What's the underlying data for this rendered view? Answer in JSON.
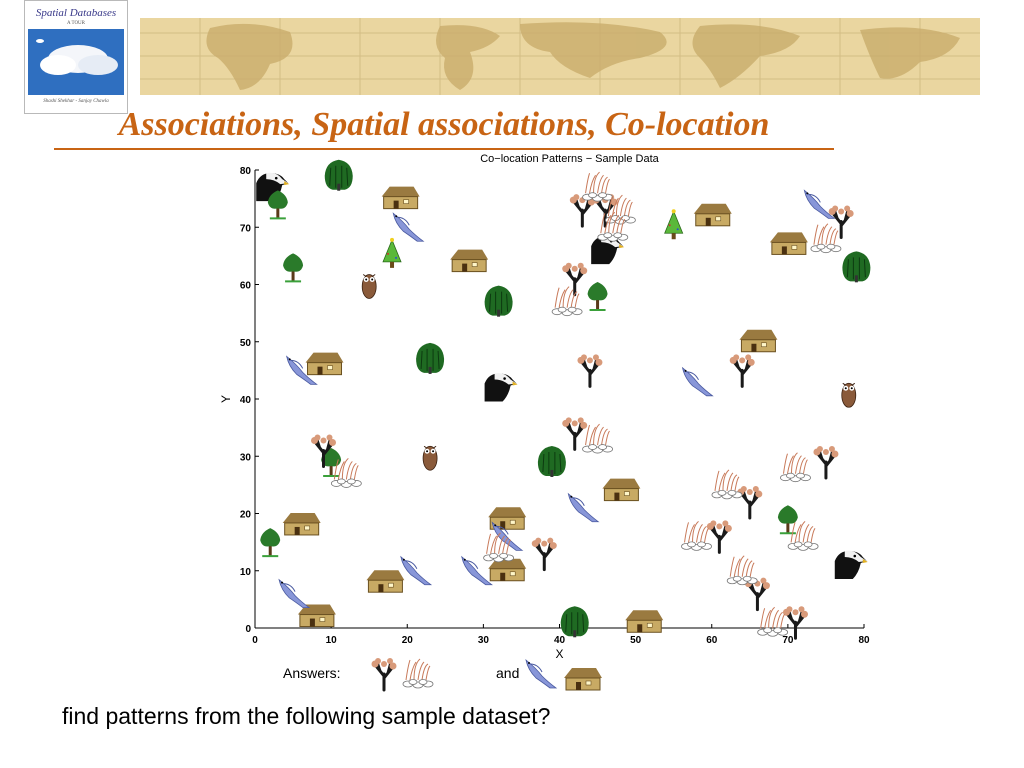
{
  "slide": {
    "title": "Associations, Spatial associations, Co-location",
    "question": "find patterns from the following sample dataset?"
  },
  "book_cover": {
    "title": "Spatial Databases",
    "subtitle": "A TOUR",
    "authors": "Shashi Shekhar - Sanjay Chawla"
  },
  "answers": {
    "label": "Answers:",
    "pattern_1": [
      "tree-icon",
      "grass-icon"
    ],
    "joiner": "and",
    "pattern_2": [
      "bird-icon",
      "house-icon"
    ]
  },
  "colors": {
    "title": "#c86414",
    "banner": "#ead6a0",
    "bird": "#8896d8",
    "house": "#c8aa64",
    "tree_trunk": "#1a1a1a",
    "tree_leaf": "#d89a7a",
    "green_tree": "#2a7a2a"
  },
  "chart_data": {
    "type": "scatter",
    "title": "Co−location Patterns − Sample Data",
    "xlabel": "X",
    "ylabel": "Y",
    "xlim": [
      0,
      80
    ],
    "ylim": [
      0,
      80
    ],
    "xticks": [
      0,
      10,
      20,
      30,
      40,
      50,
      60,
      70,
      80
    ],
    "yticks": [
      0,
      10,
      20,
      30,
      40,
      50,
      60,
      70,
      80
    ],
    "grid": false,
    "series": [
      {
        "icon": "eagle-icon",
        "points": [
          [
            2,
            77
          ],
          [
            32,
            42
          ],
          [
            46,
            66
          ],
          [
            78,
            11
          ]
        ]
      },
      {
        "icon": "green-tree-icon",
        "points": [
          [
            3,
            74
          ],
          [
            5,
            63
          ],
          [
            2,
            15
          ],
          [
            10,
            29
          ],
          [
            45,
            58
          ],
          [
            70,
            19
          ]
        ]
      },
      {
        "icon": "willow-icon",
        "points": [
          [
            11,
            79
          ],
          [
            32,
            57
          ],
          [
            23,
            47
          ],
          [
            39,
            29
          ],
          [
            42,
            1
          ],
          [
            79,
            63
          ]
        ]
      },
      {
        "icon": "house-icon",
        "points": [
          [
            19,
            75
          ],
          [
            28,
            64
          ],
          [
            9,
            46
          ],
          [
            6,
            18
          ],
          [
            17,
            8
          ],
          [
            33,
            19
          ],
          [
            33,
            10
          ],
          [
            48,
            24
          ],
          [
            60,
            72
          ],
          [
            70,
            67
          ],
          [
            66,
            50
          ],
          [
            51,
            1
          ],
          [
            8,
            2
          ]
        ]
      },
      {
        "icon": "bird-icon",
        "points": [
          [
            20,
            70
          ],
          [
            6,
            45
          ],
          [
            5,
            6
          ],
          [
            21,
            10
          ],
          [
            29,
            10
          ],
          [
            33,
            16
          ],
          [
            43,
            21
          ],
          [
            58,
            43
          ],
          [
            74,
            74
          ]
        ]
      },
      {
        "icon": "pine-icon",
        "points": [
          [
            18,
            65
          ],
          [
            55,
            70
          ]
        ]
      },
      {
        "icon": "owl-icon",
        "points": [
          [
            15,
            60
          ],
          [
            23,
            30
          ],
          [
            78,
            41
          ]
        ]
      },
      {
        "icon": "tree-icon",
        "points": [
          [
            43,
            73
          ],
          [
            46,
            73
          ],
          [
            42,
            61
          ],
          [
            44,
            45
          ],
          [
            64,
            45
          ],
          [
            42,
            34
          ],
          [
            9,
            31
          ],
          [
            75,
            29
          ],
          [
            65,
            22
          ],
          [
            61,
            16
          ],
          [
            38,
            13
          ],
          [
            66,
            6
          ],
          [
            71,
            1
          ],
          [
            77,
            71
          ]
        ]
      },
      {
        "icon": "grass-icon",
        "points": [
          [
            45,
            77
          ],
          [
            48,
            73
          ],
          [
            47,
            70
          ],
          [
            41,
            57
          ],
          [
            45,
            33
          ],
          [
            12,
            27
          ],
          [
            62,
            25
          ],
          [
            71,
            28
          ],
          [
            58,
            16
          ],
          [
            72,
            16
          ],
          [
            32,
            14
          ],
          [
            64,
            10
          ],
          [
            68,
            1
          ],
          [
            75,
            68
          ]
        ]
      }
    ]
  }
}
